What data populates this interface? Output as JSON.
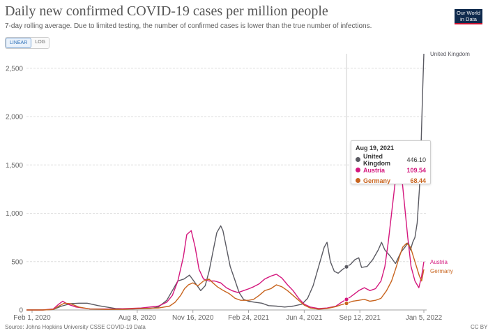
{
  "header": {
    "title": "Daily new confirmed COVID-19 cases per million people",
    "subtitle": "7-day rolling average. Due to limited testing, the number of confirmed cases is lower than the true number of infections."
  },
  "scale_toggle": {
    "linear_label": "LINEAR",
    "log_label": "LOG",
    "selected": "LINEAR"
  },
  "logo": {
    "line1": "Our World",
    "line2": "in Data"
  },
  "footer": {
    "source": "Source: Johns Hopkins University CSSE COVID-19 Data",
    "license": "CC BY"
  },
  "colors": {
    "United Kingdom": "#5a5a62",
    "Austria": "#d4177d",
    "Germany": "#c8641e"
  },
  "tooltip": {
    "date": "Aug 19, 2021",
    "rows": [
      {
        "name": "United Kingdom",
        "value": "446.10",
        "color": "#5a5a62"
      },
      {
        "name": "Austria",
        "value": "109.54",
        "color": "#d4177d"
      },
      {
        "name": "Germany",
        "value": "68.44",
        "color": "#c8641e"
      }
    ]
  },
  "chart_data": {
    "type": "line",
    "title": "Daily new confirmed COVID-19 cases per million people",
    "ylim": [
      0,
      2650
    ],
    "y_ticks": [
      0,
      500,
      1000,
      1500,
      2000,
      2500
    ],
    "y_tick_labels": [
      "0",
      "500",
      "1,000",
      "1,500",
      "2,000",
      "2,500"
    ],
    "x_range": [
      "2020-01-22",
      "2022-01-10"
    ],
    "x_ticks": [
      {
        "date": "2020-02-01",
        "label": "Feb 1, 2020"
      },
      {
        "date": "2020-08-08",
        "label": "Aug 8, 2020"
      },
      {
        "date": "2020-11-16",
        "label": "Nov 16, 2020"
      },
      {
        "date": "2021-02-24",
        "label": "Feb 24, 2021"
      },
      {
        "date": "2021-06-04",
        "label": "Jun 4, 2021"
      },
      {
        "date": "2021-09-12",
        "label": "Sep 12, 2021"
      },
      {
        "date": "2022-01-05",
        "label": "Jan 5, 2022"
      }
    ],
    "hover_date": "2021-08-19",
    "grid": true,
    "series": [
      {
        "name": "United Kingdom",
        "end_label": "United Kingdom",
        "x": [
          "2020-01-22",
          "2020-02-20",
          "2020-03-10",
          "2020-03-25",
          "2020-04-10",
          "2020-04-25",
          "2020-05-10",
          "2020-05-30",
          "2020-06-30",
          "2020-07-31",
          "2020-08-31",
          "2020-09-15",
          "2020-09-30",
          "2020-10-10",
          "2020-10-20",
          "2020-10-31",
          "2020-11-10",
          "2020-11-20",
          "2020-11-30",
          "2020-12-08",
          "2020-12-15",
          "2020-12-22",
          "2020-12-29",
          "2021-01-05",
          "2021-01-09",
          "2021-01-15",
          "2021-01-22",
          "2021-01-31",
          "2021-02-07",
          "2021-02-15",
          "2021-02-24",
          "2021-03-07",
          "2021-03-20",
          "2021-04-01",
          "2021-04-15",
          "2021-04-30",
          "2021-05-15",
          "2021-05-31",
          "2021-06-10",
          "2021-06-20",
          "2021-06-30",
          "2021-07-10",
          "2021-07-15",
          "2021-07-21",
          "2021-07-28",
          "2021-08-04",
          "2021-08-12",
          "2021-08-19",
          "2021-08-26",
          "2021-09-03",
          "2021-09-10",
          "2021-09-15",
          "2021-09-25",
          "2021-10-05",
          "2021-10-15",
          "2021-10-21",
          "2021-10-27",
          "2021-11-05",
          "2021-11-15",
          "2021-11-25",
          "2021-12-02",
          "2021-12-08",
          "2021-12-12",
          "2021-12-16",
          "2021-12-20",
          "2021-12-24",
          "2021-12-28",
          "2021-12-31",
          "2022-01-03",
          "2022-01-05"
        ],
        "y": [
          0,
          0,
          5,
          40,
          65,
          70,
          70,
          45,
          15,
          10,
          15,
          30,
          100,
          200,
          300,
          320,
          360,
          280,
          200,
          250,
          400,
          600,
          800,
          870,
          820,
          650,
          450,
          300,
          180,
          110,
          90,
          80,
          70,
          45,
          40,
          30,
          40,
          60,
          120,
          250,
          450,
          650,
          700,
          500,
          400,
          380,
          420,
          446.1,
          470,
          520,
          540,
          440,
          450,
          520,
          620,
          700,
          620,
          560,
          480,
          600,
          650,
          700,
          620,
          700,
          750,
          900,
          1250,
          1700,
          2300,
          2650
        ]
      },
      {
        "name": "Austria",
        "end_label": "Austria",
        "x": [
          "2020-01-22",
          "2020-02-20",
          "2020-03-10",
          "2020-03-20",
          "2020-03-27",
          "2020-04-05",
          "2020-04-20",
          "2020-05-15",
          "2020-06-30",
          "2020-08-15",
          "2020-09-15",
          "2020-09-30",
          "2020-10-10",
          "2020-10-20",
          "2020-10-30",
          "2020-11-05",
          "2020-11-13",
          "2020-11-20",
          "2020-11-27",
          "2020-12-05",
          "2020-12-15",
          "2020-12-25",
          "2021-01-05",
          "2021-01-15",
          "2021-01-25",
          "2021-02-05",
          "2021-02-15",
          "2021-02-25",
          "2021-03-05",
          "2021-03-15",
          "2021-03-25",
          "2021-04-05",
          "2021-04-15",
          "2021-04-25",
          "2021-05-05",
          "2021-05-15",
          "2021-05-25",
          "2021-06-04",
          "2021-06-15",
          "2021-06-30",
          "2021-07-15",
          "2021-07-31",
          "2021-08-10",
          "2021-08-19",
          "2021-08-25",
          "2021-09-01",
          "2021-09-10",
          "2021-09-20",
          "2021-09-30",
          "2021-10-10",
          "2021-10-20",
          "2021-10-27",
          "2021-11-02",
          "2021-11-08",
          "2021-11-14",
          "2021-11-19",
          "2021-11-25",
          "2021-12-01",
          "2021-12-07",
          "2021-12-13",
          "2021-12-20",
          "2021-12-27",
          "2022-01-01",
          "2022-01-05"
        ],
        "y": [
          0,
          0,
          10,
          60,
          90,
          60,
          30,
          10,
          10,
          20,
          40,
          80,
          150,
          300,
          550,
          780,
          820,
          650,
          420,
          320,
          300,
          300,
          280,
          230,
          200,
          180,
          200,
          220,
          240,
          270,
          320,
          350,
          370,
          330,
          260,
          200,
          120,
          60,
          30,
          15,
          20,
          40,
          80,
          109.54,
          130,
          160,
          200,
          230,
          200,
          220,
          300,
          450,
          700,
          1000,
          1300,
          1500,
          1450,
          1100,
          750,
          450,
          300,
          230,
          350,
          500
        ]
      },
      {
        "name": "Germany",
        "end_label": "Germany",
        "x": [
          "2020-01-22",
          "2020-02-20",
          "2020-03-10",
          "2020-03-20",
          "2020-03-30",
          "2020-04-10",
          "2020-04-25",
          "2020-05-15",
          "2020-06-15",
          "2020-07-15",
          "2020-08-15",
          "2020-09-15",
          "2020-10-05",
          "2020-10-15",
          "2020-10-25",
          "2020-11-01",
          "2020-11-08",
          "2020-11-16",
          "2020-11-25",
          "2020-12-05",
          "2020-12-15",
          "2020-12-22",
          "2020-12-30",
          "2021-01-10",
          "2021-01-20",
          "2021-01-31",
          "2021-02-10",
          "2021-02-24",
          "2021-03-05",
          "2021-03-15",
          "2021-03-25",
          "2021-04-05",
          "2021-04-15",
          "2021-04-25",
          "2021-05-05",
          "2021-05-15",
          "2021-05-25",
          "2021-06-04",
          "2021-06-15",
          "2021-06-30",
          "2021-07-15",
          "2021-07-31",
          "2021-08-10",
          "2021-08-19",
          "2021-08-30",
          "2021-09-10",
          "2021-09-20",
          "2021-09-30",
          "2021-10-10",
          "2021-10-20",
          "2021-10-30",
          "2021-11-08",
          "2021-11-15",
          "2021-11-22",
          "2021-11-28",
          "2021-12-05",
          "2021-12-12",
          "2021-12-20",
          "2021-12-28",
          "2022-01-01",
          "2022-01-05"
        ],
        "y": [
          0,
          0,
          5,
          40,
          70,
          65,
          30,
          10,
          6,
          7,
          15,
          20,
          40,
          80,
          150,
          220,
          260,
          280,
          250,
          300,
          320,
          280,
          240,
          200,
          170,
          120,
          100,
          100,
          110,
          150,
          200,
          220,
          260,
          240,
          200,
          150,
          100,
          50,
          20,
          8,
          15,
          35,
          55,
          68.44,
          90,
          100,
          110,
          90,
          100,
          120,
          200,
          300,
          420,
          550,
          650,
          690,
          650,
          500,
          350,
          300,
          420
        ]
      }
    ]
  }
}
